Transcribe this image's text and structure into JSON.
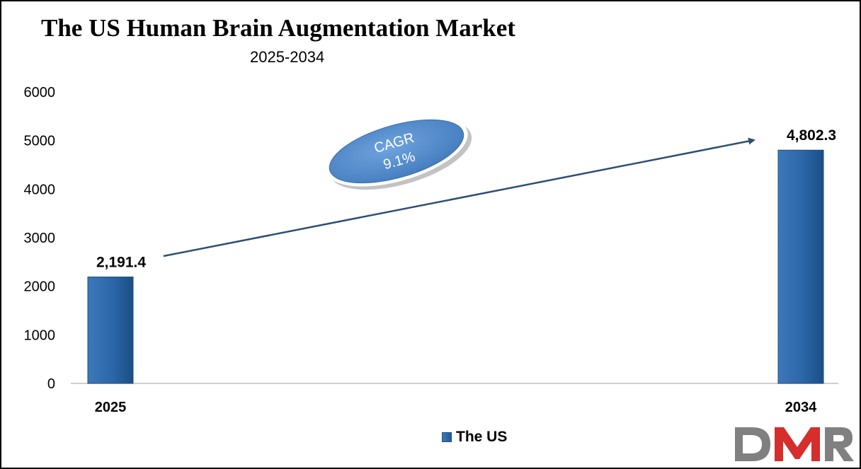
{
  "chart_data": {
    "type": "bar",
    "title": "The US Human Brain Augmentation Market",
    "subtitle": "2025-2034",
    "categories": [
      "2025",
      "2034"
    ],
    "series": [
      {
        "name": "The US",
        "values": [
          2191.4,
          4802.3
        ],
        "value_labels": [
          "2,191.4",
          "4,802.3"
        ]
      }
    ],
    "ylim": [
      0,
      6000
    ],
    "yticks": [
      0,
      1000,
      2000,
      3000,
      4000,
      5000,
      6000
    ],
    "ytick_labels": [
      "0",
      "1000",
      "2000",
      "3000",
      "4000",
      "5000",
      "6000"
    ],
    "grid": false,
    "legend_position": "bottom-center",
    "annotation": {
      "line1": "CAGR",
      "line2": "9.1%"
    },
    "colors": {
      "bar": "#2a66a8",
      "bar_dark": "#1c4f86",
      "arrow": "#2d4f72",
      "ellipse": "#5a92d0"
    }
  },
  "logo": {
    "text": "DMR",
    "colors": [
      "#808080",
      "#d62d2d"
    ]
  }
}
